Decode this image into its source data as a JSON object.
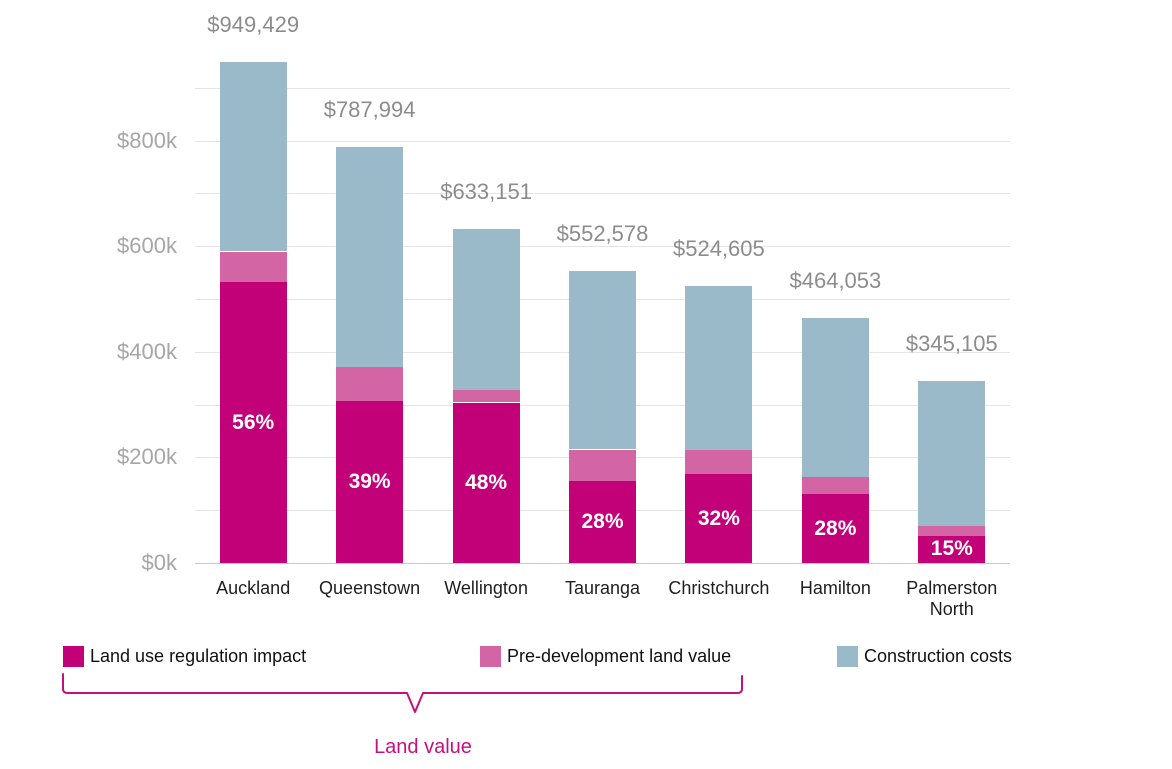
{
  "chart_data": {
    "type": "bar",
    "stacked": true,
    "categories": [
      "Auckland",
      "Queenstown",
      "Wellington",
      "Tauranga",
      "Christchurch",
      "Hamilton",
      "Palmerston North"
    ],
    "series": [
      {
        "name": "Land use regulation impact",
        "color": "#c20078",
        "values": [
          531680,
          307318,
          303912,
          154722,
          167874,
          129935,
          51766
        ]
      },
      {
        "name": "Pre-development land value",
        "color": "#d365a4",
        "values": [
          58320,
          63682,
          24088,
          60278,
          46126,
          33065,
          18234
        ]
      },
      {
        "name": "Construction costs",
        "color": "#9ab9c9",
        "values": [
          359429,
          416994,
          305151,
          337578,
          310605,
          301053,
          275105
        ]
      }
    ],
    "totals": [
      949429,
      787994,
      633151,
      552578,
      524605,
      464053,
      345105
    ],
    "total_labels": [
      "$949,429",
      "$787,994",
      "$633,151",
      "$552,578",
      "$524,605",
      "$464,053",
      "$345,105"
    ],
    "pct_labels": [
      "56%",
      "39%",
      "48%",
      "28%",
      "32%",
      "28%",
      "15%"
    ],
    "y_axis": {
      "tick_labels": [
        "$0k",
        "$200k",
        "$400k",
        "$600k",
        "$800k"
      ],
      "tick_values": [
        0,
        200000,
        400000,
        600000,
        800000
      ],
      "gridline_step": 100000,
      "gridline_max": 900000,
      "ylim": [
        0,
        1000000
      ]
    },
    "legend_position": "bottom",
    "grid": true
  },
  "legend": {
    "items": [
      {
        "label": "Land use regulation impact",
        "color": "#c20078"
      },
      {
        "label": "Pre-development land value",
        "color": "#d365a4"
      },
      {
        "label": "Construction costs",
        "color": "#9ab9c9"
      }
    ]
  },
  "annotation": {
    "label": "Land value",
    "color": "#c4107f"
  },
  "colors": {
    "gridline": "#e4e4e4",
    "axis_baseline": "#c9c9c9",
    "y_tick_text": "#a6a6a6",
    "total_text": "#8c8c8c",
    "category_text": "#1f1f1f",
    "brace": "#c4107f"
  }
}
